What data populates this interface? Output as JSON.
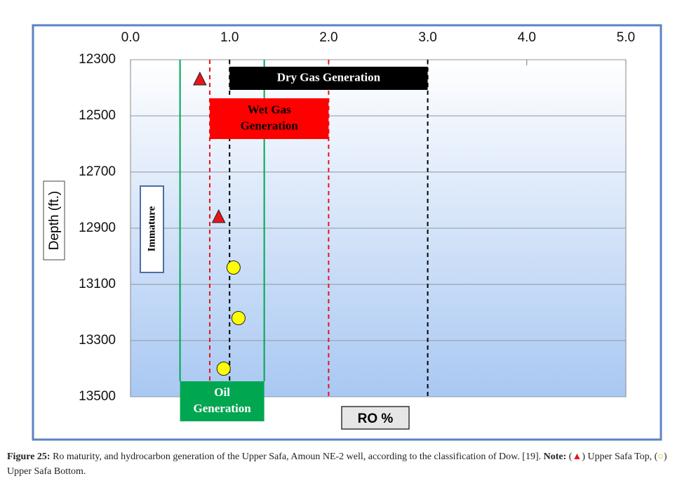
{
  "chart_data": {
    "type": "scatter",
    "x_label": "RO %",
    "y_label": "Depth (ft.)",
    "xlim": [
      0,
      5
    ],
    "xticks": [
      {
        "value": 0,
        "label": "0.0"
      },
      {
        "value": 1,
        "label": "1.0"
      },
      {
        "value": 2,
        "label": "2.0"
      },
      {
        "value": 3,
        "label": "3.0"
      },
      {
        "value": 4,
        "label": "4.0"
      },
      {
        "value": 5,
        "label": "5.0"
      }
    ],
    "ylim": [
      12300,
      13500
    ],
    "yticks": [
      12300,
      12500,
      12700,
      12900,
      13100,
      13300,
      13500
    ],
    "y_inverted": true,
    "grid": true,
    "series": [
      {
        "name": "Upper Safa Top",
        "marker": "triangle",
        "color": "#e8141b",
        "x": [
          0.7,
          0.89
        ],
        "values": [
          12370,
          12860
        ]
      },
      {
        "name": "Upper Safa Bottom",
        "marker": "circle",
        "color": "#ffff00",
        "x": [
          1.04,
          1.09,
          0.94
        ],
        "values": [
          13040,
          13220,
          13400
        ]
      }
    ],
    "zones": [
      {
        "label": [
          "Dry Gas Generation"
        ],
        "xrange": [
          1.0,
          3.0
        ],
        "color": "#000000",
        "text_color": "#ffffff",
        "line_color": "#000000"
      },
      {
        "label": [
          "Wet Gas",
          "Generation"
        ],
        "xrange": [
          0.8,
          2.0
        ],
        "color": "#ff0000",
        "text_color": "#000000",
        "line_color": "#e8141b"
      },
      {
        "label": [
          "Oil",
          "Generation"
        ],
        "xrange": [
          0.5,
          1.35
        ],
        "color": "#00a650",
        "text_color": "#ffffff",
        "line_color": "#00a650"
      }
    ],
    "immature_label": "Immature",
    "caption": {
      "label": "Figure 25:",
      "text": "Ro maturity, and hydrocarbon generation of the Upper Safa, Amoun NE-2 well, according to the classification of Dow. [19].",
      "note": "Note:"
    }
  }
}
